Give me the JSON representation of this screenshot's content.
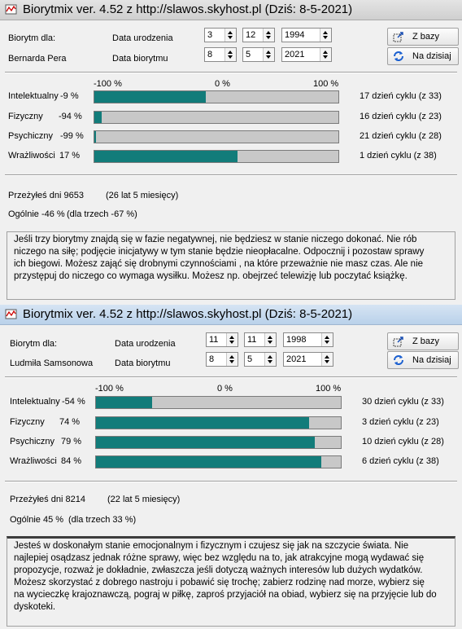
{
  "colors": {
    "bar_fill": "#127c7a",
    "bar_track": "#c8c8c8"
  },
  "windows": [
    {
      "title": "Biorytmix ver. 4.52 z http://slawos.skyhost.pl (Dziś: 8-5-2021)",
      "labels": {
        "biorytm_dla": "Biorytm dla:",
        "person": "Bernarda Pera",
        "data_urodzenia": "Data urodzenia",
        "data_biorytmu": "Data biorytmu"
      },
      "birth": {
        "day": "3",
        "month": "12",
        "year": "1994"
      },
      "bio": {
        "day": "8",
        "month": "5",
        "year": "2021"
      },
      "buttons": {
        "z_bazy": "Z bazy",
        "na_dzisiaj": "Na dzisiaj"
      },
      "scale": {
        "min": "-100 %",
        "mid": "0 %",
        "max": "100 %"
      },
      "rows": [
        {
          "name": "Intelektualny",
          "pct": "-9 %",
          "value": -9,
          "cycle": "17 dzień cyklu (z 33)"
        },
        {
          "name": "Fizyczny",
          "pct": "-94 %",
          "value": -94,
          "cycle": "16 dzień cyklu (z 23)"
        },
        {
          "name": "Psychiczny",
          "pct": "-99 %",
          "value": -99,
          "cycle": "21 dzień cyklu (z 28)"
        },
        {
          "name": "Wrażliwości",
          "pct": "17 %",
          "value": 17,
          "cycle": "1 dzień cyklu (z 38)"
        }
      ],
      "lived_days": "Przeżyłeś dni 9653",
      "lived_years": "(26 lat 5 miesięcy)",
      "overall": "Ogólnie -46 %",
      "overall_three": "(dla trzech -67 %)",
      "message": "Jeśli trzy biorytmy znajdą się w fazie negatywnej, nie będziesz w stanie niczego dokonać. Nie rób niczego na siłę; podjęcie inicjatywy w tym stanie będzie nieopłacalne. Odpocznij i pozostaw sprawy ich biegowi. Możesz zająć się drobnymi czynnościami , na które przeważnie nie masz czas. Ale nie przystępuj do niczego co wymaga wysiłku. Możesz np. obejrzeć telewizję lub poczytać książkę."
    },
    {
      "title": "Biorytmix ver. 4.52 z http://slawos.skyhost.pl (Dziś: 8-5-2021)",
      "labels": {
        "biorytm_dla": "Biorytm dla:",
        "person": "Ludmiła Samsonowa",
        "data_urodzenia": "Data urodzenia",
        "data_biorytmu": "Data biorytmu"
      },
      "birth": {
        "day": "11",
        "month": "11",
        "year": "1998"
      },
      "bio": {
        "day": "8",
        "month": "5",
        "year": "2021"
      },
      "buttons": {
        "z_bazy": "Z bazy",
        "na_dzisiaj": "Na dzisiaj"
      },
      "scale": {
        "min": "-100 %",
        "mid": "0 %",
        "max": "100 %"
      },
      "rows": [
        {
          "name": "Intelektualny",
          "pct": "-54 %",
          "value": -54,
          "cycle": "30 dzień cyklu (z 33)"
        },
        {
          "name": "Fizyczny",
          "pct": "74 %",
          "value": 74,
          "cycle": "3 dzień cyklu (z 23)"
        },
        {
          "name": "Psychiczny",
          "pct": "79 %",
          "value": 79,
          "cycle": "10 dzień cyklu (z 28)"
        },
        {
          "name": "Wrażliwości",
          "pct": "84 %",
          "value": 84,
          "cycle": "6 dzień cyklu (z 38)"
        }
      ],
      "lived_days": "Przeżyłeś dni 8214",
      "lived_years": "(22 lat 5 miesięcy)",
      "overall": "Ogólnie 45 %",
      "overall_three": "(dla trzech 33 %)",
      "message": "Jesteś w doskonałym stanie emocjonalnym i fizycznym i czujesz się jak na szczycie świata. Nie najlepiej osądzasz jednak różne sprawy, więc bez względu na to, jak atrakcyjne mogą wydawać się propozycje, rozważ je dokładnie, zwłaszcza jeśli dotyczą ważnych interesów lub dużych wydatków. Możesz skorzystać z dobrego nastroju i pobawić się trochę; zabierz rodzinę nad morze, wybierz się na wycieczkę krajoznawczą, pograj w piłkę, zaproś przyjaciół na obiad, wybierz się na przyjęcie lub do dyskoteki."
    }
  ]
}
